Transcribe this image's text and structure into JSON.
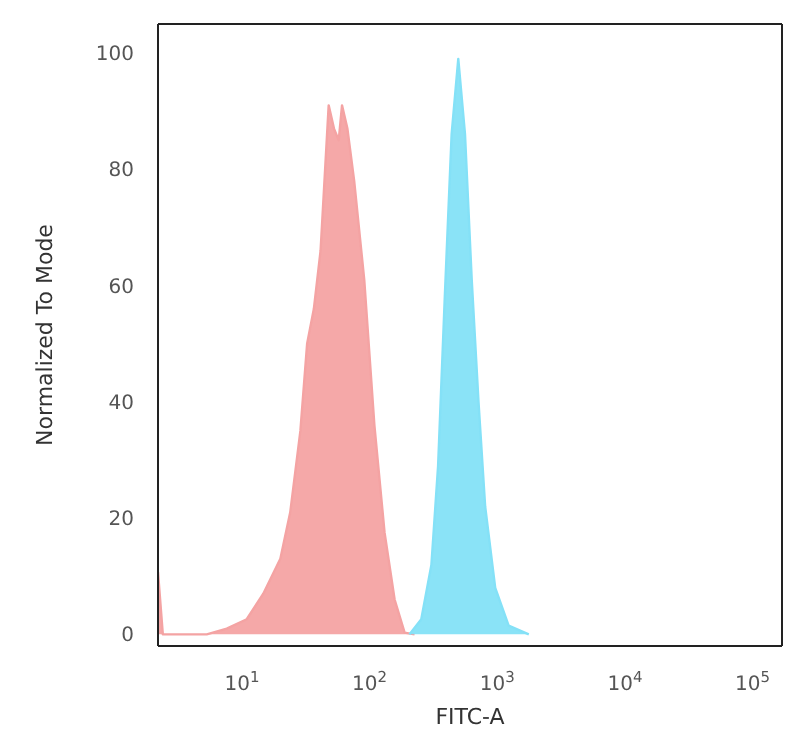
{
  "chart_data": {
    "type": "area",
    "xlabel": "FITC-A",
    "ylabel": "Normalized To Mode",
    "log": "x",
    "xlim": [
      2.2,
      170000
    ],
    "xticks": [
      {
        "value": 10,
        "label": "10$^{1}$"
      },
      {
        "value": 100,
        "label": "10$^{2}$"
      },
      {
        "value": 1000,
        "label": "10$^{3}$"
      },
      {
        "value": 10000,
        "label": "10$^{4}$"
      },
      {
        "value": 100000,
        "label": "10$^{5}$"
      }
    ],
    "ylim": [
      -2,
      105
    ],
    "yticks": [
      0,
      20,
      40,
      60,
      80,
      100
    ],
    "series": [
      {
        "color": "#f4a3a3",
        "x": [
          2.2,
          2.4,
          2.9,
          5.3,
          7.6,
          10.9,
          14.7,
          20,
          23.9,
          28.7,
          32.4,
          36.6,
          41.3,
          47.8,
          52.6,
          57.3,
          60.8,
          67,
          75.7,
          90.8,
          109,
          131,
          157,
          188,
          225
        ],
        "values": [
          10.7,
          0,
          0,
          0,
          1,
          2.6,
          7,
          13,
          21,
          35,
          50,
          56,
          66,
          91,
          87,
          85,
          91,
          87,
          78,
          61,
          36,
          17.5,
          6,
          0.3,
          0
        ]
      },
      {
        "color": "#84e1f7",
        "x": [
          205,
          254,
          305,
          344,
          388,
          439,
          495,
          559,
          631,
          713,
          804,
          964,
          1228,
          1766
        ],
        "values": [
          0,
          2.6,
          12,
          29,
          58,
          86,
          99,
          86,
          61,
          40,
          22,
          8,
          1.5,
          0
        ]
      }
    ]
  }
}
